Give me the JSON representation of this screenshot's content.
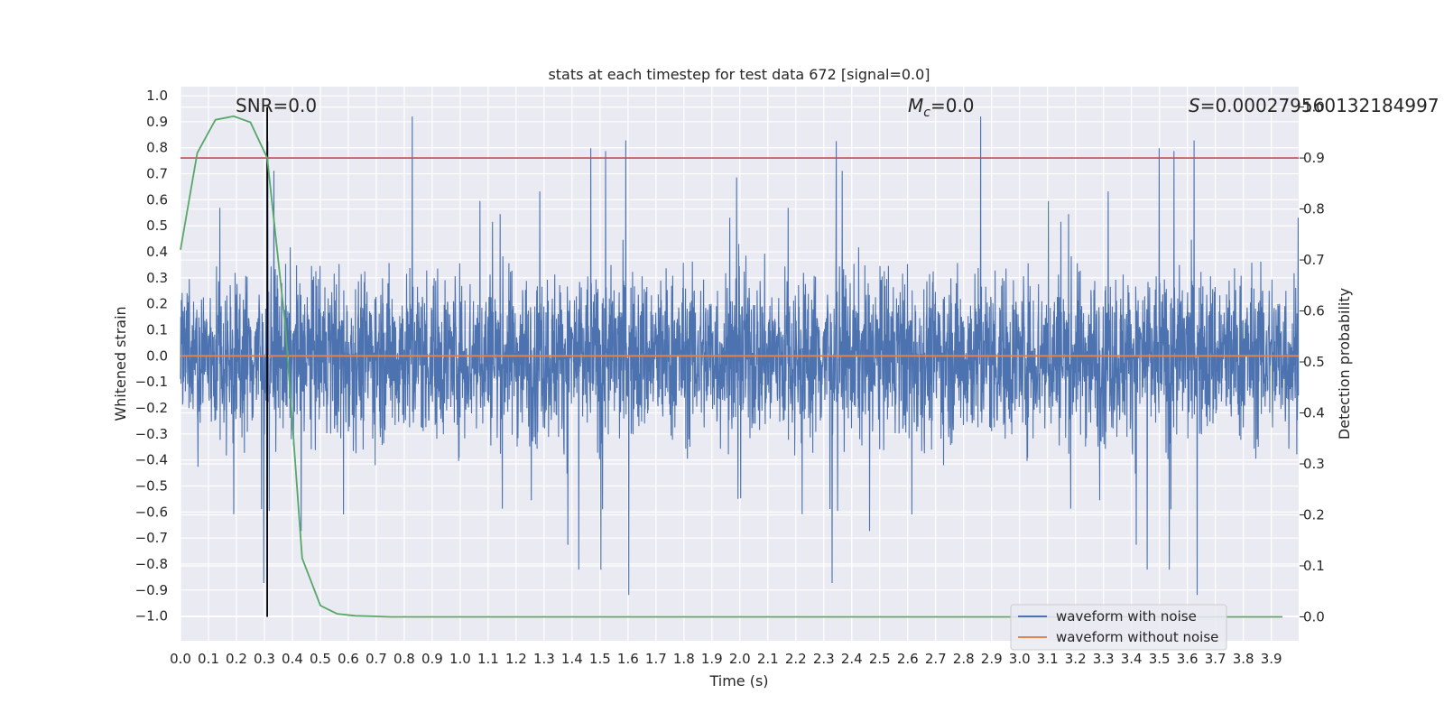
{
  "chart_data": {
    "type": "line",
    "title": "stats at each timestep for test data 672 [signal=0.0]",
    "xlabel": "Time (s)",
    "ylabel_left": "Whitened strain",
    "ylabel_right": "Detection probability",
    "xlim": [
      0.0,
      3.998
    ],
    "ylim_left": [
      -1.095,
      1.035
    ],
    "ylim_right": [
      -0.047,
      1.04
    ],
    "x_ticks": [
      "0.0",
      "0.1",
      "0.2",
      "0.3",
      "0.4",
      "0.5",
      "0.6",
      "0.7",
      "0.8",
      "0.9",
      "1.0",
      "1.1",
      "1.2",
      "1.3",
      "1.4",
      "1.5",
      "1.6",
      "1.7",
      "1.8",
      "1.9",
      "2.0",
      "2.1",
      "2.2",
      "2.3",
      "2.4",
      "2.5",
      "2.6",
      "2.7",
      "2.8",
      "2.9",
      "3.0",
      "3.1",
      "3.2",
      "3.3",
      "3.4",
      "3.5",
      "3.6",
      "3.7",
      "3.8",
      "3.9"
    ],
    "y_ticks_left": [
      "1.0",
      "0.9",
      "0.8",
      "0.7",
      "0.6",
      "0.5",
      "0.4",
      "0.3",
      "0.2",
      "0.1",
      "0.0",
      "−0.1",
      "−0.2",
      "−0.3",
      "−0.4",
      "−0.5",
      "−0.6",
      "−0.7",
      "−0.8",
      "−0.9",
      "−1.0"
    ],
    "y_ticks_right": [
      "1.0",
      "0.9",
      "0.8",
      "0.7",
      "0.6",
      "0.5",
      "0.4",
      "0.3",
      "0.2",
      "0.1",
      "0.0"
    ],
    "threshold": 0.9,
    "marker_time": 0.31,
    "series": [
      {
        "name": "waveform with noise",
        "color": "#4c72b0",
        "axis": "left",
        "style": "noise trace between about -1.0 and 0.95"
      },
      {
        "name": "waveform without noise",
        "color": "#dd8452",
        "axis": "left",
        "values_constant": 0.0
      },
      {
        "name": "detection probability",
        "color": "#55a868",
        "axis": "right",
        "x": [
          0.0,
          0.06,
          0.125,
          0.19,
          0.25,
          0.31,
          0.375,
          0.435,
          0.5,
          0.56,
          0.625,
          0.69,
          0.75,
          0.8,
          3.94
        ],
        "values": [
          0.72,
          0.91,
          0.975,
          0.982,
          0.97,
          0.9,
          0.57,
          0.115,
          0.022,
          0.006,
          0.002,
          0.001,
          0.0,
          0.0,
          0.0
        ]
      }
    ],
    "annotations": {
      "snr": "SNR=0.0",
      "mc_label": "M",
      "mc_sub": "c",
      "mc_value": "=0.0",
      "s_label": "S",
      "s_value": "=0.000279560132184997"
    },
    "legend": {
      "position": "lower-right",
      "items": [
        {
          "label": "waveform with noise",
          "color": "#4c72b0"
        },
        {
          "label": "waveform without noise",
          "color": "#dd8452"
        }
      ]
    },
    "colors": {
      "plot_bg": "#eaeaf2",
      "grid": "#ffffff",
      "threshold": "#c44e52",
      "marker": "#000000"
    }
  }
}
